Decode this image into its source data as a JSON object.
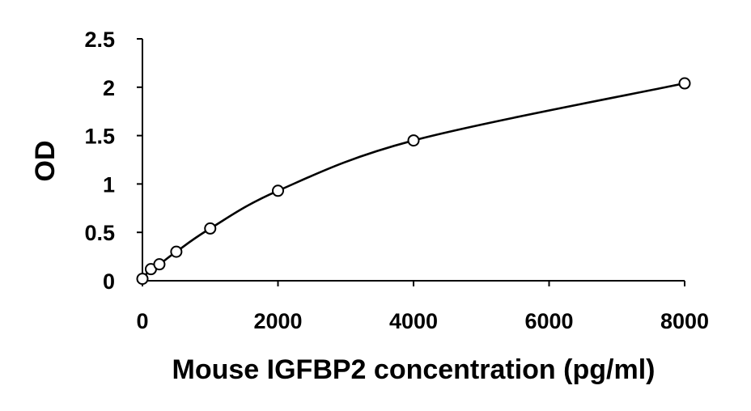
{
  "chart_data": {
    "type": "scatter",
    "title": "",
    "xlabel": "Mouse IGFBP2 concentration (pg/ml)",
    "ylabel": "OD",
    "xlim": [
      0,
      8000
    ],
    "ylim": [
      0,
      2.5
    ],
    "x_ticks": [
      0,
      2000,
      4000,
      6000,
      8000
    ],
    "x_tick_labels": [
      "0",
      "2000",
      "4000",
      "6000",
      "8000"
    ],
    "y_ticks": [
      0,
      0.5,
      1,
      1.5,
      2,
      2.5
    ],
    "y_tick_labels": [
      "0",
      "0.5",
      "1",
      "1.5",
      "2",
      "2.5"
    ],
    "grid": false,
    "legend": "none",
    "marker": "open-circle",
    "trendline": "smooth fitted curve",
    "colors": {
      "line": "#000000",
      "marker_fill": "#ffffff",
      "background": "#ffffff"
    },
    "series": [
      {
        "x": [
          0,
          125,
          250,
          500,
          1000,
          2000,
          4000,
          8000
        ],
        "y": [
          0.02,
          0.12,
          0.17,
          0.3,
          0.54,
          0.93,
          1.45,
          2.04
        ]
      }
    ]
  }
}
